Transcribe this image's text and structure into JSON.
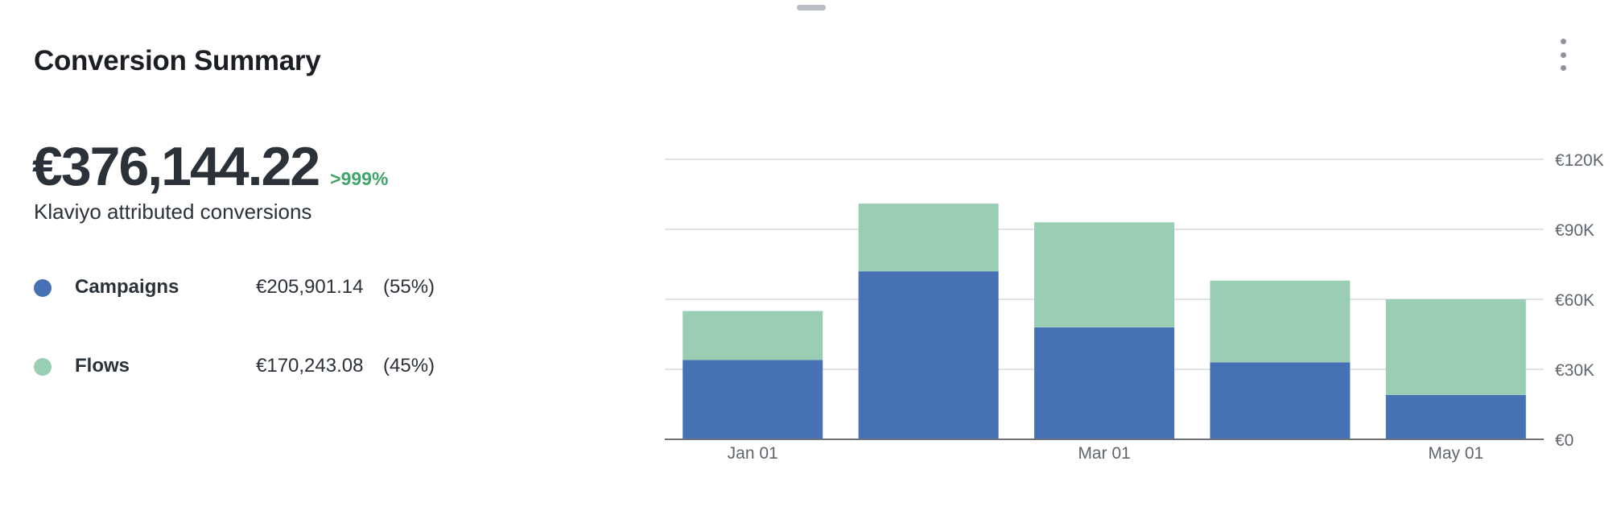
{
  "card": {
    "title": "Conversion Summary",
    "menu_icon": "kebab-menu-icon",
    "drag_icon": "drag-handle-icon"
  },
  "summary": {
    "total": "€376,144.22",
    "change": ">999%",
    "caption": "Klaviyo attributed conversions",
    "change_color": "#3fa56b"
  },
  "legend": [
    {
      "name": "Campaigns",
      "amount": "€205,901.14",
      "pct": "(55%)",
      "color": "#4671b4"
    },
    {
      "name": "Flows",
      "amount": "€170,243.08",
      "pct": "(45%)",
      "color": "#99ceb5"
    }
  ],
  "chart_data": {
    "type": "bar",
    "stacked": true,
    "categories": [
      "Jan 01",
      "",
      "Mar 01",
      "",
      "May 01"
    ],
    "series": [
      {
        "name": "Campaigns",
        "color": "#4671b4",
        "values": [
          34000,
          72000,
          48000,
          33000,
          19000
        ]
      },
      {
        "name": "Flows",
        "color": "#99ceb5",
        "values": [
          21000,
          29000,
          45000,
          35000,
          41000
        ]
      }
    ],
    "ylim": [
      0,
      120000
    ],
    "yticks": [
      0,
      30000,
      60000,
      90000,
      120000
    ],
    "ytick_labels": [
      "€0",
      "€30K",
      "€60K",
      "€90K",
      "€120K"
    ],
    "y_axis_position": "right",
    "grid": true,
    "title": "",
    "xlabel": "",
    "ylabel": ""
  }
}
